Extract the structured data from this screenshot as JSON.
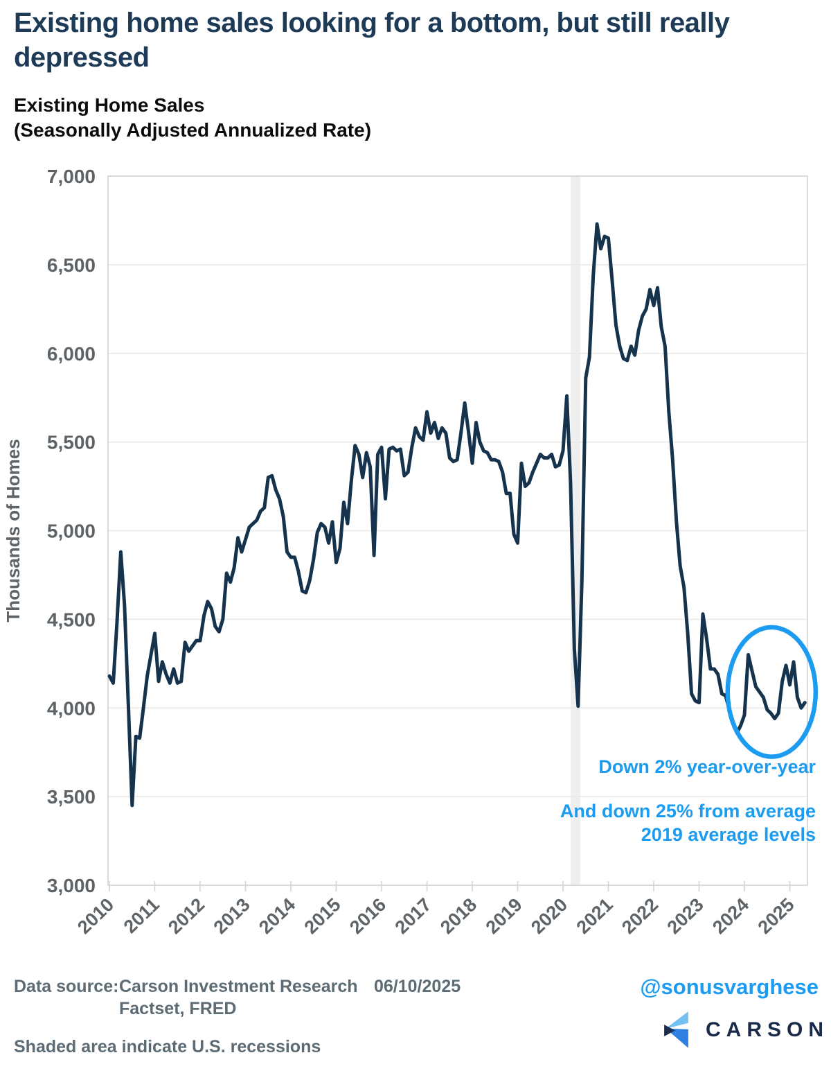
{
  "header": {
    "title": "Existing home sales looking for a bottom, but still really depressed",
    "title_line1": "Existing home sales looking for a bottom, but still really",
    "title_line2": "depressed",
    "subtitle_line1": "Existing Home Sales",
    "subtitle_line2": "(Seasonally Adjusted Annualized Rate)"
  },
  "chart_data": {
    "type": "line",
    "title": "Existing Home Sales (Seasonally Adjusted Annualized Rate)",
    "xlabel": "",
    "ylabel": "Thousands of Homes",
    "ylim": [
      3000,
      7000
    ],
    "ytick_step": 500,
    "x_start_year": 2010,
    "x_months_start": "2010-01",
    "x_months_end": "2025-05",
    "x_tick_years": [
      2010,
      2011,
      2012,
      2013,
      2014,
      2015,
      2016,
      2017,
      2018,
      2019,
      2020,
      2021,
      2022,
      2023,
      2024,
      2025
    ],
    "grid": true,
    "legend": "none",
    "series": [
      {
        "name": "Existing Home Sales (SAAR, thousands)",
        "color": "#16334d",
        "monthly_values": [
          4180,
          4140,
          4480,
          4880,
          4580,
          4020,
          3450,
          3840,
          3830,
          4000,
          4180,
          4300,
          4420,
          4150,
          4260,
          4190,
          4140,
          4220,
          4140,
          4150,
          4370,
          4320,
          4350,
          4380,
          4380,
          4520,
          4600,
          4560,
          4460,
          4430,
          4500,
          4760,
          4710,
          4790,
          4960,
          4880,
          4950,
          5020,
          5040,
          5060,
          5110,
          5130,
          5300,
          5310,
          5230,
          5180,
          5080,
          4880,
          4850,
          4850,
          4770,
          4660,
          4650,
          4720,
          4840,
          4990,
          5040,
          5020,
          4930,
          5050,
          4820,
          4900,
          5160,
          5040,
          5280,
          5480,
          5430,
          5300,
          5440,
          5360,
          4860,
          5430,
          5470,
          5180,
          5460,
          5470,
          5450,
          5460,
          5310,
          5330,
          5470,
          5580,
          5530,
          5510,
          5670,
          5550,
          5610,
          5520,
          5580,
          5550,
          5410,
          5390,
          5400,
          5550,
          5720,
          5560,
          5380,
          5610,
          5500,
          5450,
          5440,
          5400,
          5400,
          5390,
          5330,
          5210,
          5210,
          4980,
          4930,
          5380,
          5250,
          5270,
          5330,
          5380,
          5430,
          5410,
          5410,
          5430,
          5360,
          5370,
          5450,
          5760,
          5270,
          4330,
          4010,
          4720,
          5860,
          5980,
          6440,
          6730,
          6590,
          6660,
          6650,
          6410,
          6160,
          6040,
          5970,
          5960,
          6040,
          5990,
          6130,
          6210,
          6250,
          6360,
          6270,
          6370,
          6150,
          6040,
          5670,
          5400,
          5050,
          4800,
          4680,
          4420,
          4080,
          4040,
          4030,
          4530,
          4390,
          4220,
          4220,
          4190,
          4080,
          4070,
          3990,
          3920,
          3860,
          3900,
          3960,
          4300,
          4210,
          4120,
          4090,
          4060,
          3990,
          3970,
          3940,
          3970,
          4150,
          4240,
          4130,
          4260,
          4060,
          4000,
          4030
        ]
      }
    ],
    "recession_bands": [
      {
        "start_year": 2020.17,
        "end_year": 2020.38
      }
    ],
    "annotations": {
      "label1": "Down 2% year-over-year",
      "label2_line1": "And down 25% from average",
      "label2_line2": "2019 average levels",
      "circle": {
        "center_year": 2024.6,
        "center_value": 4090,
        "rx_years": 0.97,
        "ry_value": 365
      }
    },
    "colors": {
      "line": "#16334d",
      "accent_blue": "#1b9cf0",
      "gridline": "#e8e8e8",
      "axis_border": "#d4d4d4",
      "recession_band": "#efefef",
      "axis_text": "#5d6367",
      "title_navy": "#1d3a57"
    }
  },
  "footer": {
    "source_label": "Data source:",
    "source_name": "Carson Investment Research",
    "date": "06/10/2025",
    "source_line2": "Factset, FRED",
    "note": "Shaded area indicate U.S. recessions"
  },
  "branding": {
    "handle": "@sonusvarghese",
    "logo_text": "CARSON",
    "logo_colors": {
      "light_blue": "#74c0f3",
      "blue": "#2e7fe0",
      "navy": "#1b2c4d"
    }
  }
}
